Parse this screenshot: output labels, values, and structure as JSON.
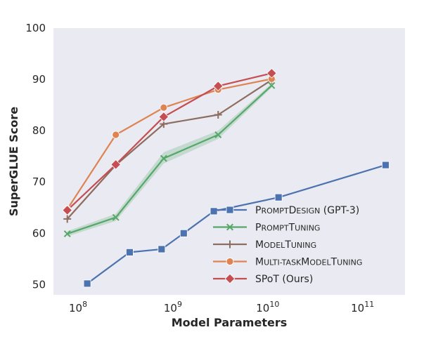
{
  "chart_data": {
    "type": "line",
    "title": "",
    "xlabel": "Model Parameters",
    "ylabel": "SuperGLUE Score",
    "xscale": "log",
    "xlim": [
      55000000.0,
      280000000000.0
    ],
    "ylim": [
      48,
      100
    ],
    "grid": false,
    "legend_position": "lower-right",
    "y_ticks": [
      "50",
      "60",
      "70",
      "80",
      "90",
      "100"
    ],
    "x_ticks": [
      {
        "value": 100000000.0,
        "base": "10",
        "exp": "8"
      },
      {
        "value": 1000000000.0,
        "base": "10",
        "exp": "9"
      },
      {
        "value": 10000000000.0,
        "base": "10",
        "exp": "10"
      },
      {
        "value": 100000000000.0,
        "base": "10",
        "exp": "11"
      }
    ],
    "series": [
      {
        "name": "PROMPTDESIGN (GPT-3)",
        "legend_label": {
          "cap1": "P",
          "sc1": "ROMPT",
          "cap2": "D",
          "sc2": "ESIGN",
          "plain": " (GPT-3)"
        },
        "color": "#4C72B0",
        "marker": "square",
        "x": [
          125000000.0,
          350000000.0,
          760000000.0,
          1300000000.0,
          2700000000.0,
          13000000000.0,
          175000000000.0
        ],
        "y": [
          50.2,
          56.3,
          56.9,
          60.0,
          64.3,
          67.0,
          73.3
        ]
      },
      {
        "name": "PROMPTTUNING",
        "legend_label": {
          "cap1": "P",
          "sc1": "ROMPT",
          "cap2": "T",
          "sc2": "UNING",
          "plain": ""
        },
        "color": "#55A868",
        "marker": "x",
        "x": [
          77000000.0,
          250000000.0,
          800000000.0,
          3000000000.0,
          11000000000.0
        ],
        "y": [
          59.9,
          63.1,
          74.6,
          79.2,
          88.8
        ],
        "band": [
          [
            59.4,
            60.4
          ],
          [
            62.4,
            63.8
          ],
          [
            73.6,
            75.8
          ],
          [
            78.4,
            80.0
          ],
          [
            88.4,
            89.2
          ]
        ]
      },
      {
        "name": "MODELTUNING",
        "legend_label": {
          "cap1": "M",
          "sc1": "ODEL",
          "cap2": "T",
          "sc2": "UNING",
          "plain": ""
        },
        "color": "#8C6D5F",
        "marker": "plus",
        "x": [
          77000000.0,
          250000000.0,
          800000000.0,
          3000000000.0,
          11000000000.0
        ],
        "y": [
          62.8,
          73.3,
          81.3,
          83.1,
          89.9
        ]
      },
      {
        "name": "MULTI-TASKMODELTUNING",
        "legend_label": {
          "cap1": "M",
          "sc1": "ULTI-TASK",
          "cap2": "M",
          "sc2": "ODEL",
          "cap3": "T",
          "sc3": "UNING",
          "plain": ""
        },
        "color": "#DD8452",
        "marker": "circle",
        "x": [
          77000000.0,
          250000000.0,
          800000000.0,
          3000000000.0,
          11000000000.0
        ],
        "y": [
          64.7,
          79.2,
          84.5,
          88.0,
          90.1
        ]
      },
      {
        "name": "SPoT (Ours)",
        "legend_label": {
          "cap1": "SP",
          "sc1": "",
          "cap2": "o",
          "sc2": "",
          "plain": "T (Ours)"
        },
        "color": "#C44E52",
        "marker": "diamond",
        "x": [
          77000000.0,
          250000000.0,
          800000000.0,
          3000000000.0,
          11000000000.0
        ],
        "y": [
          64.5,
          73.4,
          82.7,
          88.7,
          91.2
        ]
      }
    ]
  }
}
